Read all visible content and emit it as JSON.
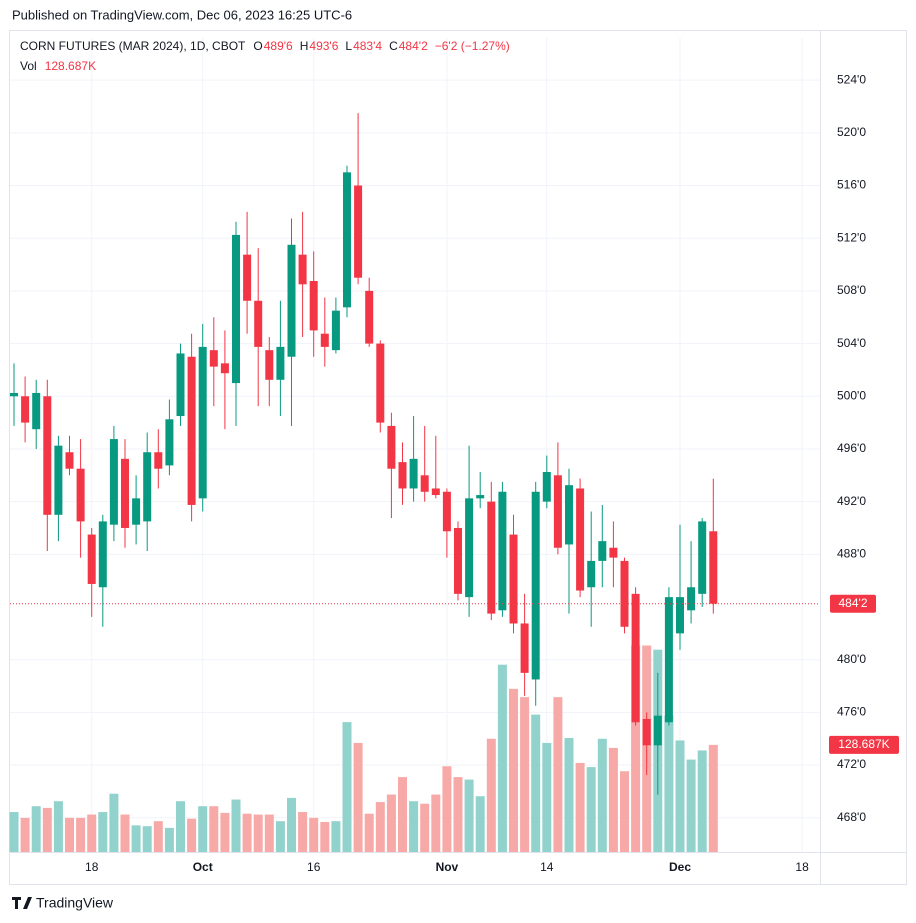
{
  "header": {
    "published": "Published on TradingView.com, Dec 06, 2023 16:25 UTC-6"
  },
  "footer": {
    "brand": "TradingView"
  },
  "chart_data": {
    "type": "candlestick",
    "title": "CORN FUTURES (MAR 2024), 1D, CBOT",
    "legend_values": [
      {
        "label": "O",
        "value": "489'6"
      },
      {
        "label": "H",
        "value": "493'6"
      },
      {
        "label": "L",
        "value": "483'4"
      },
      {
        "label": "C",
        "value": "484'2"
      }
    ],
    "change": "−6'2 (−1.27%)",
    "up_color": "#089981",
    "down_color": "#f23645",
    "volume_up_color": "#92d2cc",
    "volume_down_color": "#f7a9a7",
    "categories": [
      null,
      null,
      null,
      null,
      null,
      null,
      null,
      "18",
      null,
      null,
      null,
      null,
      null,
      null,
      null,
      null,
      null,
      "Oct",
      null,
      null,
      null,
      null,
      null,
      null,
      null,
      null,
      null,
      "16",
      null,
      null,
      null,
      null,
      null,
      null,
      null,
      null,
      null,
      null,
      null,
      "Nov",
      null,
      null,
      null,
      null,
      null,
      null,
      null,
      null,
      "14",
      null,
      null,
      null,
      null,
      null,
      null,
      null,
      null,
      null,
      null,
      null,
      "Dec",
      null,
      null,
      null,
      null,
      null,
      null,
      null,
      null,
      null,
      null,
      "18"
    ],
    "open": [
      500,
      500,
      497.5,
      500,
      491,
      495.75,
      494.5,
      489.5,
      485.5,
      490.25,
      495.25,
      490.25,
      490.5,
      495.75,
      494.75,
      498.5,
      503,
      492.25,
      503.5,
      502.5,
      501,
      510.75,
      507.25,
      503.5,
      501.25,
      503,
      510.75,
      508.75,
      504.75,
      503.5,
      506.75,
      516,
      508,
      504,
      497.75,
      495,
      493,
      494,
      493,
      492.75,
      490,
      484.75,
      492.25,
      492,
      483.75,
      489.5,
      482.75,
      478.5,
      492,
      494,
      488.75,
      493,
      485.5,
      487.5,
      488.5,
      487.5,
      485,
      475.5,
      473.5,
      475.25,
      482,
      483.75,
      485,
      489.75,
      null,
      null,
      null,
      null,
      null,
      null,
      null,
      null
    ],
    "high": [
      502.5,
      501.5,
      501.25,
      501.25,
      497,
      497,
      496.75,
      490,
      491,
      497.75,
      496.75,
      494,
      497.25,
      497.5,
      499.75,
      504,
      504.75,
      505.5,
      506,
      505,
      513.25,
      514,
      511.25,
      504.5,
      507.25,
      513.5,
      514,
      511,
      507.5,
      507.5,
      517.5,
      521.5,
      509,
      504.25,
      498.75,
      496.5,
      498.5,
      497.75,
      497,
      493,
      490.5,
      496.25,
      494.25,
      493.5,
      493.5,
      491,
      485,
      493.5,
      495.5,
      496.5,
      494.5,
      493.75,
      491.25,
      491.75,
      490.5,
      487.75,
      485.5,
      476,
      479,
      485.5,
      490.25,
      489,
      490.75,
      493.75,
      null,
      null,
      null,
      null,
      null,
      null,
      null,
      null
    ],
    "low": [
      497.75,
      496.5,
      496,
      488.25,
      489,
      494,
      487.75,
      483.25,
      482.5,
      489,
      488.5,
      488.75,
      488.25,
      493,
      494,
      497.75,
      490.5,
      491.25,
      499.25,
      497.5,
      497.75,
      504.75,
      499.25,
      499.25,
      498.5,
      497.75,
      504.5,
      503,
      502.25,
      503.25,
      506,
      508.5,
      503.75,
      497.25,
      490.75,
      491.75,
      492,
      492,
      492.25,
      487.75,
      484.5,
      483.25,
      491.5,
      483,
      483.25,
      482,
      477.25,
      476.5,
      491.5,
      488,
      483.5,
      484.75,
      482.5,
      485.5,
      485.5,
      482,
      475,
      471.25,
      469.75,
      475,
      480.75,
      482.75,
      484,
      483.5,
      null,
      null,
      null,
      null,
      null,
      null,
      null,
      null
    ],
    "close": [
      500.25,
      498,
      500.25,
      491,
      496.25,
      494.5,
      490.5,
      485.75,
      490.5,
      496.75,
      490,
      492.25,
      495.75,
      494.5,
      498.25,
      503.25,
      491.75,
      503.75,
      502.25,
      501.75,
      512.25,
      507.25,
      503.75,
      501.25,
      503.75,
      511.5,
      508.5,
      505,
      503.75,
      506.5,
      517,
      509,
      504,
      498,
      494.5,
      493,
      495.25,
      492.75,
      492.5,
      489.75,
      485,
      492.25,
      492.5,
      483.5,
      492.75,
      482.75,
      479,
      492.75,
      494.25,
      488.5,
      493.25,
      485.25,
      487.5,
      489,
      487.75,
      482.5,
      475.25,
      473.5,
      475.75,
      484.75,
      484.75,
      485.5,
      490.5,
      484.25,
      null,
      null,
      null,
      null,
      null,
      null,
      null,
      null
    ],
    "volume": {
      "name": "Vol",
      "axis": "y2",
      "values": [
        48000,
        41000,
        55000,
        53000,
        61000,
        41000,
        41000,
        45000,
        48000,
        70000,
        45000,
        32000,
        31000,
        37000,
        29000,
        61000,
        40000,
        55000,
        55000,
        47000,
        63000,
        46000,
        45000,
        45000,
        37000,
        65000,
        48000,
        41000,
        36000,
        37000,
        156000,
        131000,
        46000,
        60000,
        69000,
        90000,
        61000,
        58000,
        69000,
        103000,
        90000,
        87000,
        67000,
        136000,
        225000,
        196000,
        186000,
        165000,
        131000,
        186000,
        137000,
        107000,
        102000,
        136000,
        125000,
        97000,
        248000,
        248000,
        243000,
        164000,
        134000,
        111000,
        122000,
        128687,
        null,
        null,
        null,
        null,
        null,
        null,
        null,
        null
      ],
      "value_labels": [
        null,
        null,
        null,
        null,
        null,
        null,
        null,
        null,
        null,
        null,
        null,
        null,
        null,
        null,
        null,
        null,
        null,
        null,
        null,
        null,
        null,
        null,
        null,
        null,
        null,
        null,
        null,
        null,
        null,
        null,
        null,
        null,
        null,
        null,
        null,
        null,
        null,
        null,
        null,
        null,
        null,
        null,
        null,
        null,
        null,
        null,
        null,
        null,
        null,
        null,
        null,
        null,
        null,
        null,
        null,
        null,
        null,
        null,
        null,
        null,
        null,
        null,
        null,
        "128.687K",
        null,
        null,
        null,
        null,
        null,
        null,
        null,
        null
      ]
    },
    "last_price": {
      "value": 484.25,
      "label": "484'2"
    },
    "ylim": [
      465.4,
      527.2
    ],
    "yticks": [
      {
        "value": 468,
        "label": "468'0"
      },
      {
        "value": 472,
        "label": "472'0"
      },
      {
        "value": 476,
        "label": "476'0"
      },
      {
        "value": 480,
        "label": "480'0"
      },
      {
        "value": 488,
        "label": "488'0"
      },
      {
        "value": 492,
        "label": "492'0"
      },
      {
        "value": 496,
        "label": "496'0"
      },
      {
        "value": 500,
        "label": "500'0"
      },
      {
        "value": 504,
        "label": "504'0"
      },
      {
        "value": 508,
        "label": "508'0"
      },
      {
        "value": 512,
        "label": "512'0"
      },
      {
        "value": 516,
        "label": "516'0"
      },
      {
        "value": 520,
        "label": "520'0"
      },
      {
        "value": 524,
        "label": "524'0"
      }
    ],
    "y2lim": [
      0,
      400000
    ],
    "grid": true
  }
}
